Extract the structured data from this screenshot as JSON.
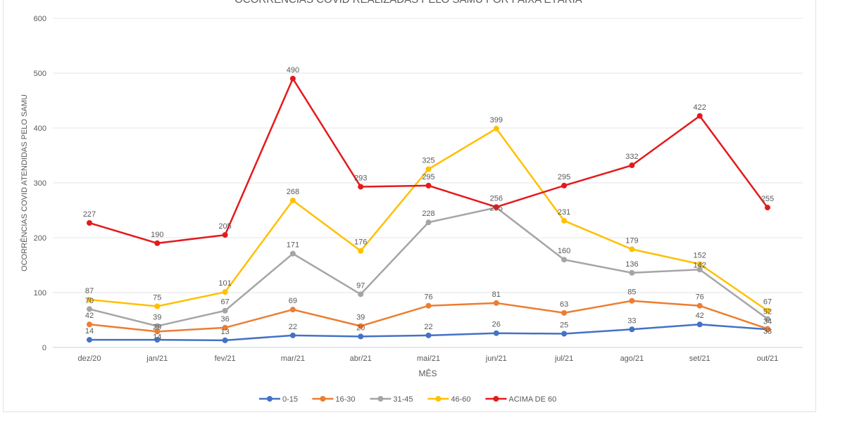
{
  "chart_data": {
    "type": "line",
    "title": "OCORRÊNCIAS COVID REALIZADAS PELO SAMU POR FAIXA ETÁRIA",
    "xlabel": "MÊS",
    "ylabel": "OCORRÊNCIAS COVID ATENDIDAS PELO SAMU",
    "ylim": [
      0,
      600
    ],
    "yticks": [
      0,
      100,
      200,
      300,
      400,
      500,
      600
    ],
    "grid": true,
    "legend": "bottom",
    "categories": [
      "dez/20",
      "jan/21",
      "fev/21",
      "mar/21",
      "abr/21",
      "mai/21",
      "jun/21",
      "jul/21",
      "ago/21",
      "set/21",
      "out/21"
    ],
    "series": [
      {
        "name": "0-15",
        "color": "#4472c4",
        "values": [
          14,
          14,
          13,
          22,
          20,
          22,
          26,
          25,
          33,
          42,
          33
        ]
      },
      {
        "name": "16-30",
        "color": "#ed7d31",
        "values": [
          42,
          29,
          36,
          69,
          39,
          76,
          81,
          63,
          85,
          76,
          34
        ]
      },
      {
        "name": "31-45",
        "color": "#a5a5a5",
        "values": [
          70,
          39,
          67,
          171,
          97,
          228,
          255,
          160,
          136,
          142,
          52
        ]
      },
      {
        "name": "46-60",
        "color": "#ffc000",
        "values": [
          87,
          75,
          101,
          268,
          176,
          325,
          399,
          231,
          179,
          152,
          67
        ]
      },
      {
        "name": "ACIMA DE 60",
        "color": "#e41a1c",
        "values": [
          227,
          190,
          205,
          490,
          293,
          295,
          256,
          295,
          332,
          422,
          255
        ]
      }
    ]
  }
}
